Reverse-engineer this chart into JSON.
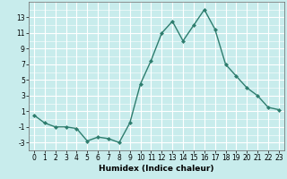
{
  "x": [
    0,
    1,
    2,
    3,
    4,
    5,
    6,
    7,
    8,
    9,
    10,
    11,
    12,
    13,
    14,
    15,
    16,
    17,
    18,
    19,
    20,
    21,
    22,
    23
  ],
  "y": [
    0.5,
    -0.5,
    -1.0,
    -1.0,
    -1.2,
    -2.8,
    -2.3,
    -2.5,
    -3.0,
    -0.5,
    4.5,
    7.5,
    11.0,
    12.5,
    10.0,
    12.0,
    14.0,
    11.5,
    7.0,
    5.5,
    4.0,
    3.0,
    1.5,
    1.2
  ],
  "line_color": "#2e7d6e",
  "marker": "D",
  "marker_size": 2.0,
  "bg_color": "#c8ecec",
  "grid_color": "#ffffff",
  "xlabel": "Humidex (Indice chaleur)",
  "ylim": [
    -4,
    15
  ],
  "xlim": [
    -0.5,
    23.5
  ],
  "yticks": [
    -3,
    -1,
    1,
    3,
    5,
    7,
    9,
    11,
    13
  ],
  "xticks": [
    0,
    1,
    2,
    3,
    4,
    5,
    6,
    7,
    8,
    9,
    10,
    11,
    12,
    13,
    14,
    15,
    16,
    17,
    18,
    19,
    20,
    21,
    22,
    23
  ],
  "xlabel_fontsize": 6.5,
  "tick_fontsize": 5.5,
  "line_width": 1.0
}
